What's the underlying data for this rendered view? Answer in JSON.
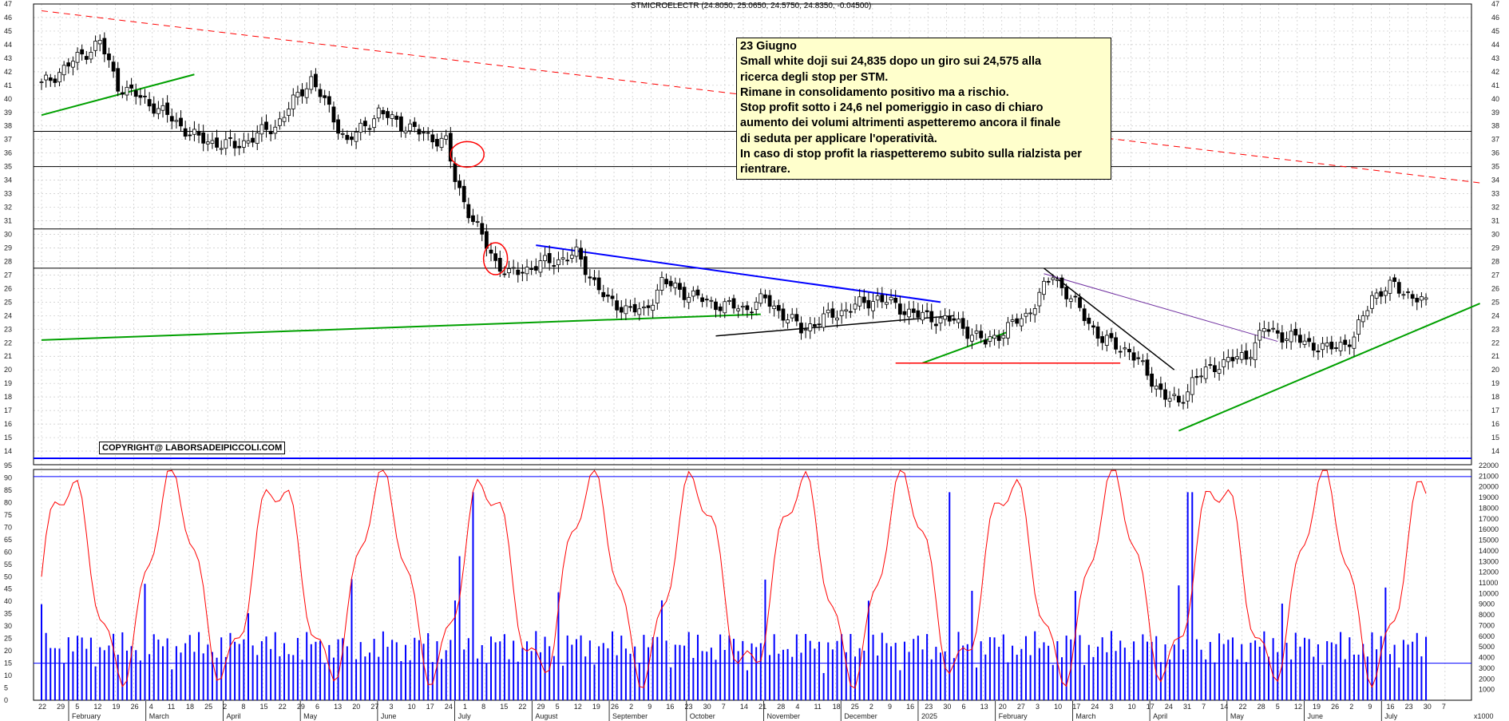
{
  "header": {
    "instrument": "STMICROELECTR",
    "ohlc_readout": "(24.8050, 25.0650, 24.5750, 24.8350, -0.04500)"
  },
  "annotation": {
    "lines": [
      "23 Giugno",
      "Small white doji sui 24,835 dopo un giro sui 24,575 alla",
      "ricerca degli stop per STM.",
      "Rimane in consolidamento positivo ma a rischio.",
      "Stop profit sotto i 24,6 nel pomeriggio in caso di chiaro",
      "aumento dei volumi altrimenti aspetteremo ancora il finale",
      "di seduta per applicare l'operatività.",
      "In caso di stop profit la riaspetteremo subito sulla rialzista per",
      "rientrare."
    ]
  },
  "copyright": "COPYRIGHT@ LABORSADEIPICCOLI.COM",
  "volume_scale_label": "x1000",
  "colors": {
    "price": "#000000",
    "volume": "#0000ff",
    "oscillator": "#ff0000",
    "trend_up": "#00a000",
    "trend_down": "#0000ff",
    "resistance": "#ff0000",
    "grid": "#c8c8c8"
  },
  "chart_data": {
    "type": "candlestick_with_volume_and_oscillator",
    "price_axis": {
      "ylim": [
        13,
        47
      ],
      "ticks": [
        14,
        15,
        16,
        17,
        18,
        19,
        20,
        21,
        22,
        23,
        24,
        25,
        26,
        27,
        28,
        29,
        30,
        31,
        32,
        33,
        34,
        35,
        36,
        37,
        38,
        39,
        40,
        41,
        42,
        43,
        44,
        45,
        46,
        47
      ]
    },
    "oscillator_axis": {
      "ylim": [
        0,
        95
      ],
      "ticks": [
        0,
        5,
        10,
        15,
        20,
        25,
        30,
        35,
        40,
        45,
        50,
        55,
        60,
        65,
        70,
        75,
        80,
        85,
        90,
        95
      ]
    },
    "volume_axis": {
      "ylim": [
        0,
        22000
      ],
      "ticks": [
        1000,
        2000,
        3000,
        4000,
        5000,
        6000,
        7000,
        8000,
        9000,
        10000,
        11000,
        12000,
        13000,
        14000,
        15000,
        16000,
        17000,
        18000,
        19000,
        20000,
        21000,
        22000
      ]
    },
    "x_day_labels": [
      "22",
      "29",
      "5",
      "12",
      "19",
      "26",
      "4",
      "11",
      "18",
      "25",
      "2",
      "8",
      "15",
      "22",
      "29",
      "6",
      "13",
      "20",
      "27",
      "3",
      "10",
      "17",
      "24",
      "1",
      "8",
      "15",
      "22",
      "29",
      "5",
      "12",
      "19",
      "26",
      "2",
      "9",
      "16",
      "23",
      "30",
      "7",
      "14",
      "21",
      "28",
      "4",
      "11",
      "18",
      "25",
      "2",
      "9",
      "16",
      "23",
      "30",
      "6",
      "13",
      "20",
      "27",
      "3",
      "10",
      "17",
      "24",
      "3",
      "10",
      "17",
      "24",
      "31",
      "7",
      "14",
      "22",
      "28",
      "5",
      "12",
      "19",
      "26",
      "2",
      "9",
      "16",
      "23",
      "30",
      "7"
    ],
    "x_month_labels": [
      "February",
      "March",
      "April",
      "May",
      "June",
      "July",
      "August",
      "September",
      "October",
      "November",
      "December",
      "2025",
      "February",
      "March",
      "April",
      "May",
      "June",
      "July"
    ],
    "horizontal_levels": [
      37.6,
      35.0,
      30.4,
      27.5
    ],
    "anchor_closes": [
      [
        0,
        41
      ],
      [
        6,
        42.5
      ],
      [
        13,
        44.2
      ],
      [
        17,
        41
      ],
      [
        25,
        39.5
      ],
      [
        35,
        37
      ],
      [
        43,
        36.5
      ],
      [
        52,
        38
      ],
      [
        60,
        41.5
      ],
      [
        68,
        36.8
      ],
      [
        75,
        39
      ],
      [
        84,
        37.5
      ],
      [
        90,
        36.8
      ],
      [
        92,
        34
      ],
      [
        96,
        31
      ],
      [
        101,
        28
      ],
      [
        104,
        27
      ],
      [
        109,
        27.6
      ],
      [
        119,
        28.5
      ],
      [
        126,
        25
      ],
      [
        134,
        24.2
      ],
      [
        138,
        26.5
      ],
      [
        148,
        25
      ],
      [
        156,
        24.5
      ],
      [
        161,
        25.2
      ],
      [
        169,
        23
      ],
      [
        177,
        24.2
      ],
      [
        186,
        25.3
      ],
      [
        195,
        24
      ],
      [
        203,
        23.6
      ],
      [
        210,
        22
      ],
      [
        219,
        24
      ],
      [
        225,
        27
      ],
      [
        236,
        22.2
      ],
      [
        242,
        21.4
      ],
      [
        250,
        18
      ],
      [
        253,
        17.5
      ],
      [
        256,
        19.2
      ],
      [
        262,
        20.5
      ],
      [
        268,
        21
      ],
      [
        272,
        23
      ],
      [
        278,
        22.4
      ],
      [
        286,
        21.5
      ],
      [
        292,
        22.3
      ],
      [
        296,
        25.5
      ],
      [
        301,
        26.2
      ],
      [
        308,
        24.83
      ]
    ],
    "last_close": 24.835
  }
}
